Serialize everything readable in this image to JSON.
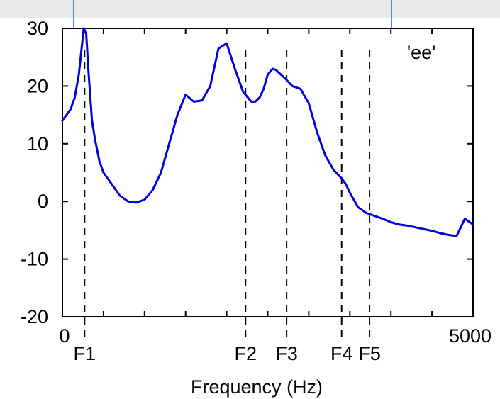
{
  "chart_data": {
    "type": "line",
    "title": "'ee'",
    "xlabel": "Frequency (Hz)",
    "ylabel": "",
    "xlim": [
      0,
      5000
    ],
    "ylim": [
      -20,
      30
    ],
    "x_tick_labels": [
      "0",
      "5000"
    ],
    "y_ticks": [
      30,
      20,
      10,
      0,
      -10,
      -20
    ],
    "grid": false,
    "line_color": "#0000e0",
    "series": [
      {
        "x": [
          0,
          100,
          150,
          200,
          230,
          260,
          290,
          320,
          360,
          400,
          450,
          500,
          600,
          700,
          800,
          900,
          1000,
          1100,
          1200,
          1300,
          1400,
          1500,
          1600,
          1700,
          1800,
          1900,
          2000,
          2100,
          2200,
          2300,
          2350,
          2400,
          2450,
          2500,
          2560,
          2600,
          2660,
          2700,
          2800,
          2900,
          3000,
          3100,
          3200,
          3300,
          3400,
          3450,
          3500,
          3600,
          3700,
          3800,
          3900,
          4000,
          4100,
          4200,
          4300,
          4400,
          4500,
          4600,
          4700,
          4800,
          4900,
          5000
        ],
        "y": [
          14,
          16,
          18,
          22,
          26,
          30,
          29,
          22,
          14,
          10.5,
          7,
          5,
          3,
          1,
          0,
          -0.2,
          0.3,
          2,
          5,
          10,
          15,
          18.5,
          17.3,
          17.5,
          20,
          26.5,
          27.4,
          23,
          19,
          17.3,
          17.3,
          18,
          19.5,
          22,
          23,
          22.8,
          22,
          21.5,
          20,
          19.5,
          17,
          12,
          8,
          5.5,
          4,
          3,
          1.5,
          -1,
          -2,
          -2.5,
          -3,
          -3.6,
          -4,
          -4.2,
          -4.5,
          -4.8,
          -5.1,
          -5.5,
          -5.8,
          -6,
          -3,
          -4
        ]
      }
    ],
    "markers": [
      {
        "name": "F1",
        "x": 270
      },
      {
        "name": "F2",
        "x": 2230
      },
      {
        "name": "F3",
        "x": 2730
      },
      {
        "name": "F4",
        "x": 3400
      },
      {
        "name": "F5",
        "x": 3740
      }
    ]
  }
}
